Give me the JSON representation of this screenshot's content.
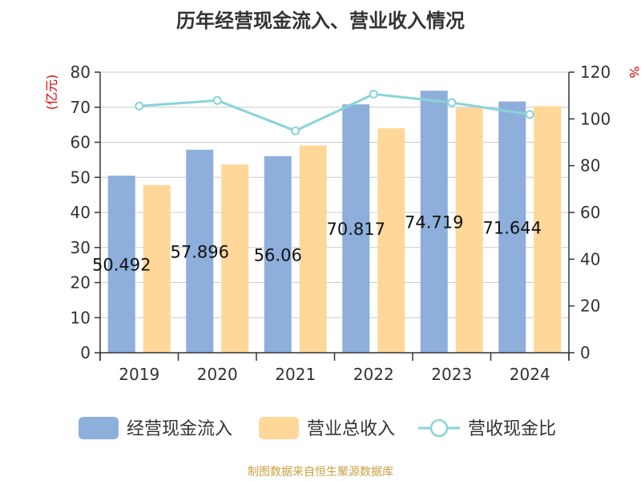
{
  "title": "历年经营现金流入、营业收入情况",
  "source": "制图数据来自恒生聚源数据库",
  "chart_data": {
    "type": "bar",
    "categories": [
      "2019",
      "2020",
      "2021",
      "2022",
      "2023",
      "2024"
    ],
    "series": [
      {
        "name": "经营现金流入",
        "type": "bar",
        "axis": "left",
        "color": "#8eaedb",
        "values": [
          50.492,
          57.896,
          56.06,
          70.817,
          74.719,
          71.644
        ]
      },
      {
        "name": "营业总收入",
        "type": "bar",
        "axis": "left",
        "color": "#ffd899",
        "values": [
          47.8,
          53.7,
          59.1,
          64.0,
          69.9,
          70.3
        ]
      },
      {
        "name": "营收现金比",
        "type": "line",
        "axis": "right",
        "color": "#88d4d8",
        "values": [
          105.5,
          107.9,
          94.9,
          110.6,
          107.0,
          101.9
        ]
      }
    ],
    "data_labels": [
      "50.492",
      "57.896",
      "56.06",
      "70.817",
      "74.719",
      "71.644"
    ],
    "left_axis": {
      "label": "(亿元)",
      "ylim": [
        0,
        80
      ],
      "ticks": [
        "0",
        "10",
        "20",
        "30",
        "40",
        "50",
        "60",
        "70",
        "80"
      ]
    },
    "right_axis": {
      "label": "%",
      "ylim": [
        0,
        120
      ],
      "ticks": [
        "0",
        "20",
        "40",
        "60",
        "80",
        "100",
        "120"
      ]
    },
    "grid": true,
    "legend_position": "bottom"
  }
}
